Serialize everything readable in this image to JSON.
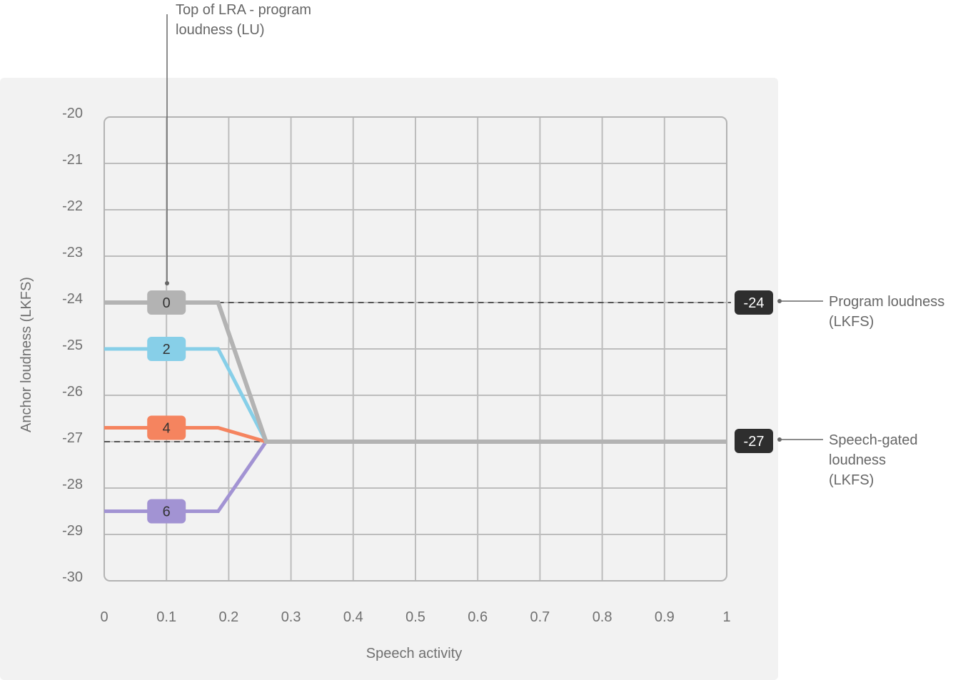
{
  "chart_data": {
    "type": "line",
    "title": "",
    "xlabel": "Speech activity",
    "ylabel": "Anchor loudness (LKFS)",
    "xlim": [
      0,
      1
    ],
    "ylim": [
      -30,
      -20
    ],
    "grid": true,
    "x_ticks": [
      "0",
      "0.1",
      "0.2",
      "0.3",
      "0.4",
      "0.5",
      "0.6",
      "0.7",
      "0.8",
      "0.9",
      "1"
    ],
    "y_ticks": [
      "-20",
      "-21",
      "-22",
      "-23",
      "-24",
      "-25",
      "-26",
      "-27",
      "-28",
      "-29",
      "-30"
    ],
    "legend_position": "inline labels at x=0.1",
    "series": [
      {
        "name": "0",
        "color": "#b3b3b3",
        "points": [
          [
            0,
            -24
          ],
          [
            0.183,
            -24
          ],
          [
            0.26,
            -27
          ],
          [
            1,
            -27
          ]
        ]
      },
      {
        "name": "2",
        "color": "#87cfe8",
        "points": [
          [
            0,
            -25
          ],
          [
            0.183,
            -25
          ],
          [
            0.26,
            -27
          ],
          [
            1,
            -27
          ]
        ]
      },
      {
        "name": "4",
        "color": "#f5845f",
        "points": [
          [
            0,
            -26.7
          ],
          [
            0.183,
            -26.7
          ],
          [
            0.26,
            -27
          ],
          [
            1,
            -27
          ]
        ]
      },
      {
        "name": "6",
        "color": "#a293d3",
        "points": [
          [
            0,
            -28.5
          ],
          [
            0.183,
            -28.5
          ],
          [
            0.26,
            -27
          ],
          [
            1,
            -27
          ]
        ]
      }
    ],
    "reference_lines": [
      {
        "y": -24,
        "style": "dashed",
        "label": "-24",
        "annotation": "Program loudness (LKFS)"
      },
      {
        "y": -27,
        "style": "dashed",
        "label": "-27",
        "annotation": "Speech-gated loudness (LKFS)"
      }
    ],
    "annotations": [
      {
        "text": "Top of LRA - program loudness (LU)",
        "target_x": 0.1,
        "target_y": -24
      }
    ]
  },
  "annotations": {
    "top_label_line1": "Top of LRA - program",
    "top_label_line2": "loudness (LU)",
    "program_line1": "Program loudness",
    "program_line2": "(LKFS)",
    "speech_line1": "Speech-gated",
    "speech_line2": "loudness",
    "speech_line3": "(LKFS)"
  },
  "badges": {
    "program_value": "-24",
    "speech_value": "-27"
  }
}
